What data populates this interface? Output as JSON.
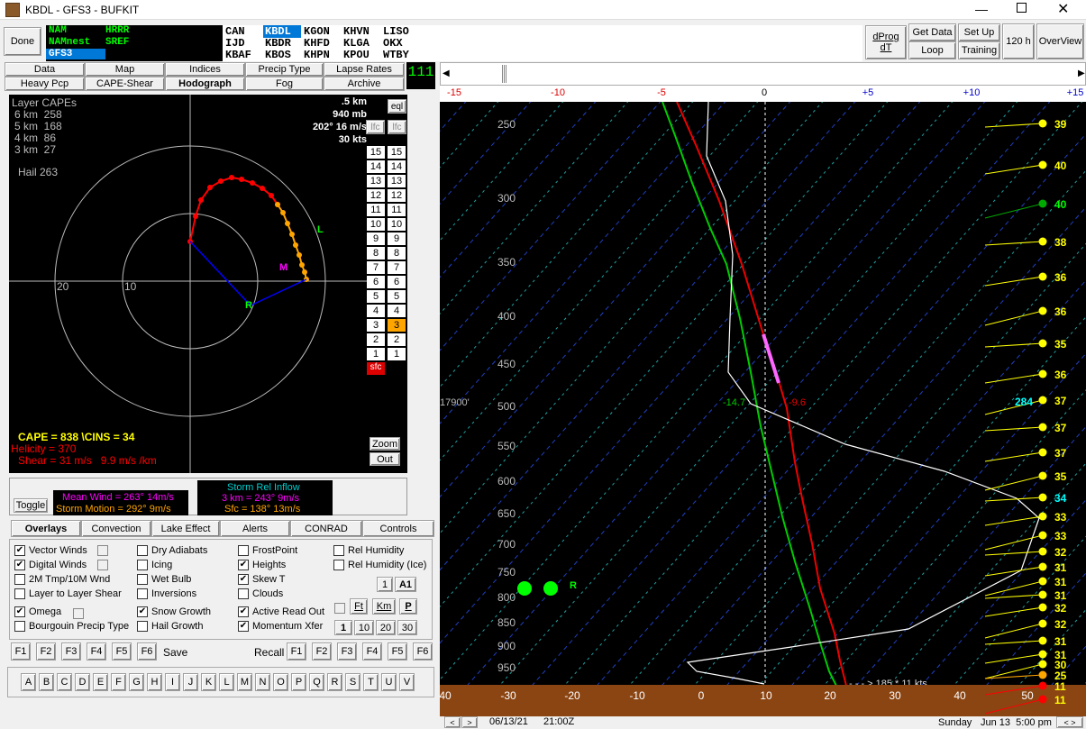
{
  "window": {
    "title": "KBDL - GFS3 - BUFKIT"
  },
  "toolbar": {
    "done": "Done",
    "dprog": "dProg",
    "dt": "dT",
    "get_data": "Get Data",
    "set_up": "Set Up",
    "loop": "Loop",
    "training": "Training",
    "hours": "120 h",
    "overview": "OverView"
  },
  "models": [
    "NAM",
    "HRRR",
    "NAMnest",
    "SREF",
    "GFS3"
  ],
  "stations": [
    "CAN",
    "KBDL",
    "KGON",
    "KHVN",
    "LISO",
    "IJD",
    "KBDR",
    "KHFD",
    "KLGA",
    "OKX",
    "KBAF",
    "KBOS",
    "KHPN",
    "KPOU",
    "WTBY"
  ],
  "tabs1": [
    "Data",
    "Map",
    "Indices",
    "Precip Type",
    "Lapse Rates"
  ],
  "tabs2": [
    "Heavy Pcp",
    "CAPE-Shear",
    "Hodograph",
    "Fog",
    "Archive"
  ],
  "counter": "111",
  "hodo": {
    "caption": "Layer CAPEs",
    "capes": [
      "6 km  258",
      "5 km  168",
      "4 km  86",
      "3 km  27"
    ],
    "hail": "Hail 263",
    "readout": [
      ".5 km",
      "940 mb",
      "202° 16 m/s",
      "30 kts"
    ],
    "eql": "eql",
    "lfc": "lfc",
    "ring20": "20",
    "ring10": "10",
    "L": "L",
    "M": "M",
    "R": "R",
    "cape_line": "CAPE = 838 \\CINS = 34",
    "helicity": "Helicity = 370",
    "shear": "Shear = 31 m/s   9.9 m/s /km",
    "zoom": "Zoom",
    "out": "Out",
    "sfc": "sfc",
    "levels": [
      "15",
      "14",
      "13",
      "12",
      "11",
      "10",
      "9",
      "8",
      "7",
      "6",
      "5",
      "4",
      "3",
      "2",
      "1"
    ],
    "highlight": "3"
  },
  "wind_panel": {
    "toggle": "Toggle",
    "mean": "Mean Wind = 263°  14m/s",
    "motion": "Storm Motion = 292°  9m/s",
    "sri_title": "Storm Rel Inflow",
    "sri_3km": "3 km = 243°  9m/s",
    "sri_sfc": "Sfc = 138°  13m/s"
  },
  "tabs3": [
    "Overlays",
    "Convection",
    "Lake Effect",
    "Alerts",
    "CONRAD",
    "Controls"
  ],
  "checks": [
    {
      "label": "Vector Winds",
      "on": true
    },
    {
      "label": "Digital Winds",
      "on": true
    },
    {
      "label": "2M Tmp/10M Wnd",
      "on": false
    },
    {
      "label": "Layer to Layer Shear",
      "on": false
    },
    {
      "label": "Omega",
      "on": true
    },
    {
      "label": "Bourgouin Precip Type",
      "on": false
    },
    {
      "label": "Dry Adiabats",
      "on": false
    },
    {
      "label": "Icing",
      "on": false
    },
    {
      "label": "Wet Bulb",
      "on": false
    },
    {
      "label": "Inversions",
      "on": false
    },
    {
      "label": "Snow Growth",
      "on": true
    },
    {
      "label": "Hail Growth",
      "on": false
    },
    {
      "label": "FrostPoint",
      "on": false
    },
    {
      "label": "Heights",
      "on": true
    },
    {
      "label": "Skew T",
      "on": true
    },
    {
      "label": "Clouds",
      "on": false
    },
    {
      "label": "Active Read Out",
      "on": true
    },
    {
      "label": "Momentum Xfer",
      "on": true
    },
    {
      "label": "Rel Humidity",
      "on": false
    },
    {
      "label": "Rel Humidity (Ice)",
      "on": false
    }
  ],
  "small_btns": {
    "one": "1",
    "a1": "A1",
    "ft": "Ft",
    "km": "Km",
    "p": "P",
    "n1": "1",
    "n10": "10",
    "n20": "20",
    "n30": "30"
  },
  "fkeys": [
    "F1",
    "F2",
    "F3",
    "F4",
    "F5",
    "F6"
  ],
  "save": "Save",
  "recall": "Recall",
  "letters": [
    "A",
    "B",
    "C",
    "D",
    "E",
    "F",
    "G",
    "H",
    "I",
    "J",
    "K",
    "L",
    "M",
    "N",
    "O",
    "P",
    "Q",
    "R",
    "S",
    "T",
    "U",
    "V"
  ],
  "skewt": {
    "top_axis": [
      "-15",
      "-10",
      "-5",
      "0",
      "+5",
      "+10",
      "+15"
    ],
    "pressures": [
      "250",
      "300",
      "350",
      "400",
      "450",
      "500",
      "550",
      "600",
      "650",
      "700",
      "750",
      "800",
      "850",
      "900",
      "950"
    ],
    "temps": [
      "-40",
      "-30",
      "-20",
      "-10",
      "0",
      "10",
      "20",
      "30",
      "40",
      "50"
    ],
    "height_label": "17900'",
    "wb_label": "-14.7",
    "t_label": "-9.6",
    "sfc_wind": "185 * 11 kts",
    "omega_R": "R",
    "wind_speeds": [
      "39",
      "40",
      "40",
      "38",
      "36",
      "36",
      "35",
      "36",
      "37",
      "37",
      "37",
      "35",
      "34",
      "33",
      "33",
      "32",
      "31",
      "31",
      "31",
      "32",
      "32",
      "31",
      "31",
      "30",
      "25",
      "11",
      "11"
    ],
    "wind_284": "284"
  },
  "status": {
    "date": "06/13/21",
    "time": "21:00Z",
    "day": "Sunday",
    "local": "Jun 13  5:00 pm"
  }
}
